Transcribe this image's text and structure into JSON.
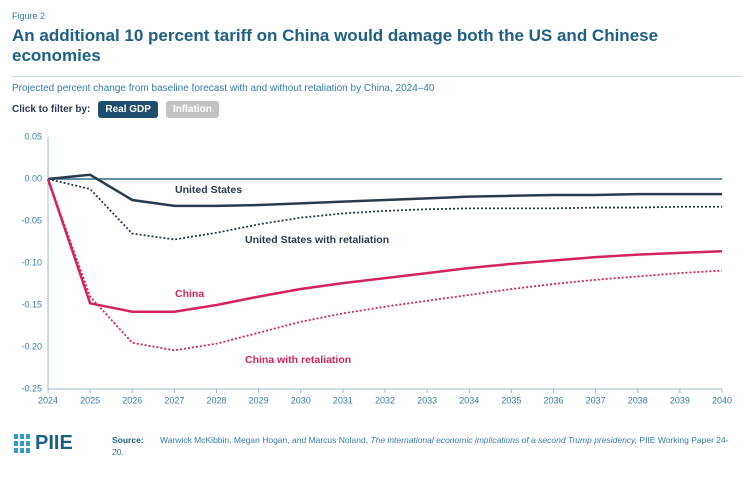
{
  "figure_label": "Figure 2",
  "subtitle": "Projected percent change from baseline forecast with and without retaliation by China, 2024–40",
  "filter": {
    "label": "Click to filter by:",
    "buttons": [
      "Real GDP",
      "Inflation"
    ],
    "active": 0
  },
  "logo": "PIIE",
  "source": {
    "label": "Source:",
    "parts": [
      {
        "text": "Warwick McKibbin, Megan Hogan, and Marcus Noland, ",
        "italic": false
      },
      {
        "text": "The international economic implications of a second Trump presidency,",
        "italic": true
      },
      {
        "text": " PIIE Working Paper 24-20.",
        "italic": false
      }
    ]
  },
  "chart_data": {
    "type": "line",
    "title": "An additional 10 percent tariff on China would damage both the US and Chinese economies",
    "x": [
      2024,
      2025,
      2026,
      2027,
      2028,
      2029,
      2030,
      2031,
      2032,
      2033,
      2034,
      2035,
      2036,
      2037,
      2038,
      2039,
      2040
    ],
    "xlim": [
      2024,
      2040
    ],
    "xticks": [
      2024,
      2025,
      2026,
      2027,
      2028,
      2029,
      2030,
      2031,
      2032,
      2033,
      2034,
      2035,
      2036,
      2037,
      2038,
      2039,
      2040
    ],
    "ylim": [
      -0.25,
      0.05
    ],
    "yticks": [
      {
        "value": 0.05,
        "label": "0.05"
      },
      {
        "value": 0,
        "label": "0.00"
      },
      {
        "value": -0.05,
        "label": "-0.05"
      },
      {
        "value": -0.1,
        "label": "-0.10"
      },
      {
        "value": -0.15,
        "label": "-0.15"
      },
      {
        "value": -0.2,
        "label": "-0.20"
      },
      {
        "value": -0.25,
        "label": "-0.25"
      }
    ],
    "zero_line": true,
    "series": [
      {
        "name": "United States",
        "color": "#2a3a4b",
        "dashed": false,
        "values": [
          0,
          0.005,
          -0.025,
          -0.032,
          -0.032,
          -0.031,
          -0.029,
          -0.027,
          -0.025,
          -0.023,
          -0.021,
          -0.02,
          -0.019,
          -0.019,
          -0.018,
          -0.018,
          -0.018
        ]
      },
      {
        "name": "United States with retaliation",
        "color": "#2a3a4b",
        "dashed": true,
        "values": [
          0,
          -0.012,
          -0.065,
          -0.072,
          -0.064,
          -0.054,
          -0.046,
          -0.041,
          -0.038,
          -0.036,
          -0.035,
          -0.035,
          -0.035,
          -0.034,
          -0.034,
          -0.033,
          -0.033
        ]
      },
      {
        "name": "China",
        "color": "#d4235e",
        "dashed": false,
        "values": [
          0,
          -0.148,
          -0.158,
          -0.158,
          -0.15,
          -0.14,
          -0.131,
          -0.124,
          -0.118,
          -0.112,
          -0.106,
          -0.101,
          -0.097,
          -0.093,
          -0.09,
          -0.088,
          -0.086
        ]
      },
      {
        "name": "China with retaliation",
        "color": "#d4235e",
        "dashed": true,
        "values": [
          0,
          -0.14,
          -0.195,
          -0.204,
          -0.196,
          -0.183,
          -0.17,
          -0.16,
          -0.152,
          -0.145,
          -0.138,
          -0.131,
          -0.125,
          -0.12,
          -0.116,
          -0.112,
          -0.109
        ]
      }
    ]
  }
}
